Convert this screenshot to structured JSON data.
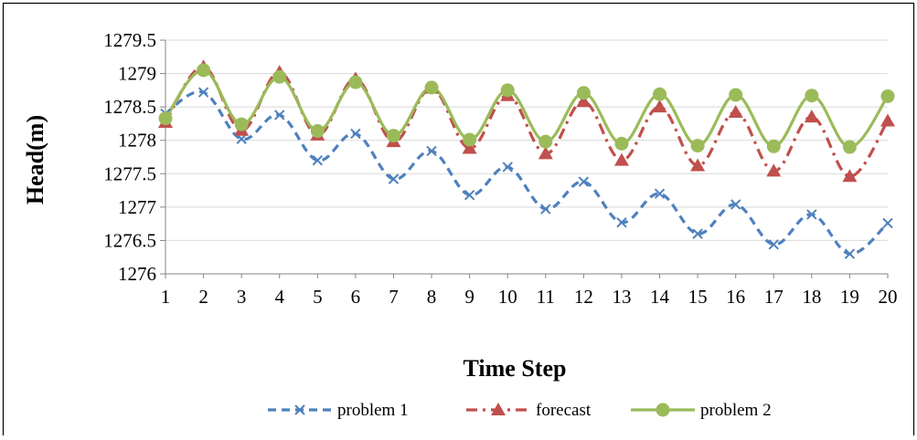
{
  "chart_data": {
    "type": "line",
    "title": "",
    "xlabel": "Time Step",
    "ylabel": "Head(m)",
    "ylim": [
      1276,
      1279.5
    ],
    "y_ticks": [
      "1276",
      "1276.5",
      "1277",
      "1277.5",
      "1278",
      "1278.5",
      "1279",
      "1279.5"
    ],
    "y_tick_values": [
      1276,
      1276.5,
      1277,
      1277.5,
      1278,
      1278.5,
      1279,
      1279.5
    ],
    "categories": [
      "1",
      "2",
      "3",
      "4",
      "5",
      "6",
      "7",
      "8",
      "9",
      "10",
      "11",
      "12",
      "13",
      "14",
      "15",
      "16",
      "17",
      "18",
      "19",
      "20"
    ],
    "grid": true,
    "legend_position": "bottom",
    "series": [
      {
        "name": "problem 1",
        "color": "#4F81BD",
        "line_style": "dashed",
        "marker": "x",
        "values": [
          1278.4,
          1278.72,
          1278.02,
          1278.38,
          1277.7,
          1278.1,
          1277.42,
          1277.84,
          1277.18,
          1277.6,
          1276.97,
          1277.38,
          1276.77,
          1277.2,
          1276.6,
          1277.04,
          1276.44,
          1276.89,
          1276.3,
          1276.76
        ]
      },
      {
        "name": "forecast",
        "color": "#C0504D",
        "line_style": "dash-dot",
        "marker": "triangle",
        "values": [
          1278.27,
          1279.1,
          1278.15,
          1279.02,
          1278.08,
          1278.92,
          1277.98,
          1278.78,
          1277.88,
          1278.67,
          1277.8,
          1278.58,
          1277.7,
          1278.5,
          1277.62,
          1278.42,
          1277.54,
          1278.35,
          1277.46,
          1278.29
        ]
      },
      {
        "name": "problem 2",
        "color": "#9BBB59",
        "line_style": "solid",
        "marker": "circle",
        "values": [
          1278.33,
          1279.05,
          1278.24,
          1278.95,
          1278.14,
          1278.87,
          1278.07,
          1278.79,
          1278.01,
          1278.75,
          1277.98,
          1278.71,
          1277.95,
          1278.69,
          1277.92,
          1278.68,
          1277.91,
          1278.67,
          1277.9,
          1278.66
        ]
      }
    ]
  }
}
